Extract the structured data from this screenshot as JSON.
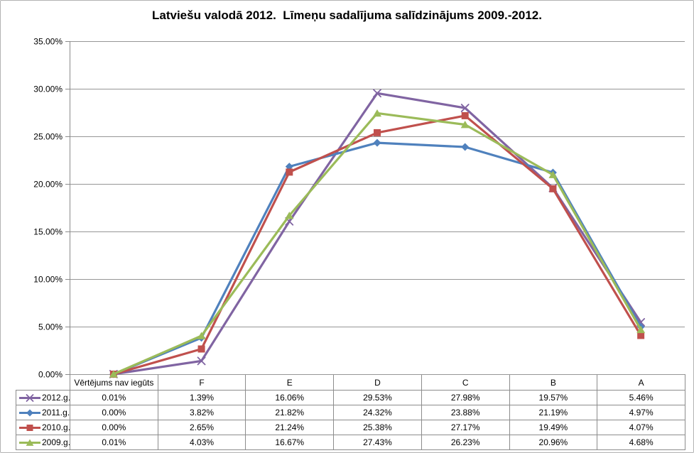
{
  "chart_data": {
    "type": "line",
    "title": "Latviešu valodā 2012.  Līmeņu sadalījuma salīdzinājums 2009.-2012.",
    "categories": [
      "Vērtējums nav iegūts",
      "F",
      "E",
      "D",
      "C",
      "B",
      "A"
    ],
    "series": [
      {
        "name": "2012.g.",
        "color": "#8064A2",
        "marker": "x",
        "values": [
          0.01,
          1.39,
          16.06,
          29.53,
          27.98,
          19.57,
          5.46
        ]
      },
      {
        "name": "2011.g.",
        "color": "#4F81BD",
        "marker": "diamond",
        "values": [
          0.0,
          3.82,
          21.82,
          24.32,
          23.88,
          21.19,
          4.97
        ]
      },
      {
        "name": "2010.g.",
        "color": "#C0504D",
        "marker": "square",
        "values": [
          0.0,
          2.65,
          21.24,
          25.38,
          27.17,
          19.49,
          4.07
        ]
      },
      {
        "name": "2009.g.",
        "color": "#9BBB59",
        "marker": "triangle",
        "values": [
          0.01,
          4.03,
          16.67,
          27.43,
          26.23,
          20.96,
          4.68
        ]
      }
    ],
    "y_axis": {
      "min": 0,
      "max": 35,
      "step": 5,
      "tick_labels": [
        "0.00%",
        "5.00%",
        "10.00%",
        "15.00%",
        "20.00%",
        "25.00%",
        "30.00%",
        "35.00%"
      ]
    },
    "value_suffix": "%",
    "grid": true,
    "legend_position": "table-left",
    "xlabel": "",
    "ylabel": ""
  },
  "colors": {
    "gridline": "#969696",
    "axis": "#8a8a8a",
    "table_border": "#8c8c8c",
    "text": "#000000",
    "background": "#ffffff"
  }
}
